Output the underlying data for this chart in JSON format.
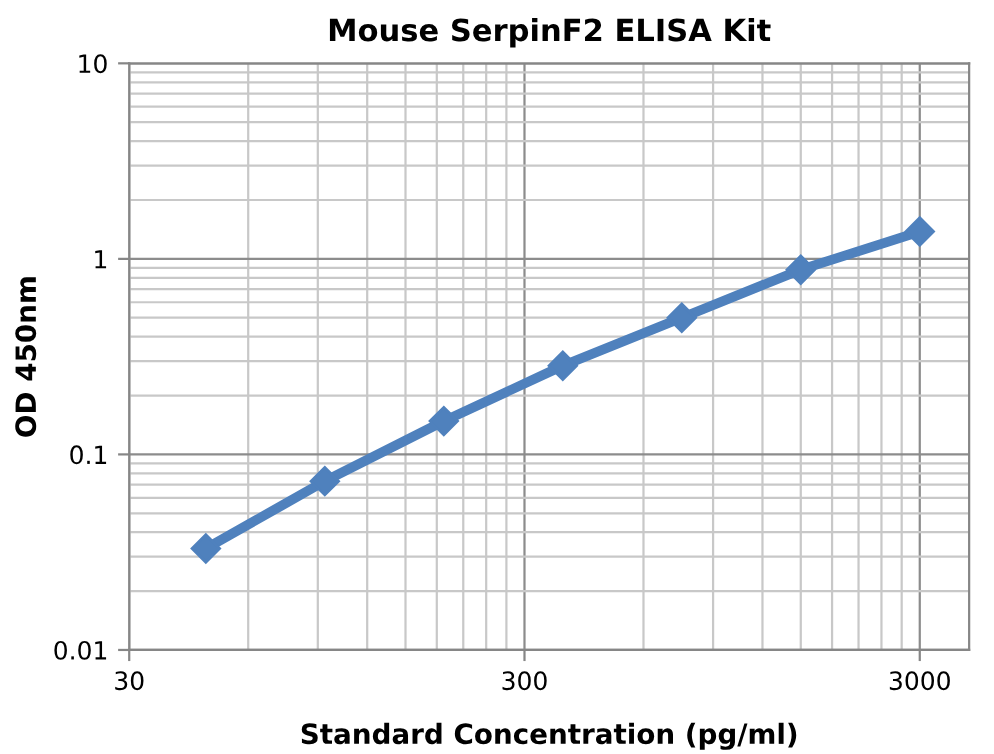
{
  "chart_data": {
    "type": "line",
    "title": "Mouse SerpinF2 ELISA Kit",
    "xlabel": "Standard Concentration (pg/ml)",
    "ylabel": "OD 450nm",
    "x": [
      46.875,
      93.75,
      187.5,
      375,
      750,
      1500,
      3000
    ],
    "series": [
      {
        "color": "#4f81bd",
        "values": [
          0.033,
          0.073,
          0.148,
          0.284,
          0.5,
          0.88,
          1.38
        ]
      }
    ],
    "log": "xy",
    "xlim": [
      30,
      4000
    ],
    "ylim": [
      0.01,
      10
    ],
    "xticks": [
      30,
      300,
      3000
    ],
    "yticks": [
      0.01,
      0.1,
      1,
      10
    ],
    "grid": true,
    "marker": "diamond",
    "line_style": "solid"
  }
}
